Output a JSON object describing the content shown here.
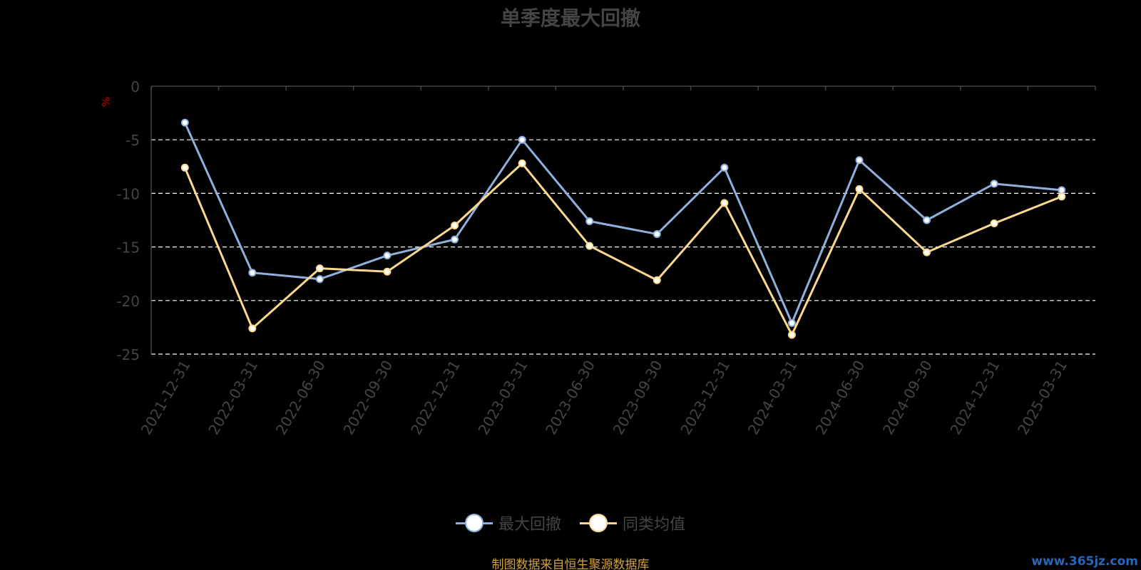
{
  "chart_data": {
    "type": "line",
    "title": "单季度最大回撤",
    "ylabel": "%",
    "xlabel": "",
    "ylim": [
      -25,
      0
    ],
    "yticks": [
      0,
      -5,
      -10,
      -15,
      -20,
      -25
    ],
    "grid": "dashed horizontal",
    "legend_position": "bottom",
    "categories": [
      "2021-12-31",
      "2022-03-31",
      "2022-06-30",
      "2022-09-30",
      "2022-12-31",
      "2023-03-31",
      "2023-06-30",
      "2023-09-30",
      "2023-12-31",
      "2024-03-31",
      "2024-06-30",
      "2024-09-30",
      "2024-12-31",
      "2025-03-31"
    ],
    "series": [
      {
        "name": "最大回撤",
        "color": "#8fb0dd",
        "values": [
          -3.4,
          -17.4,
          -18.0,
          -15.8,
          -14.3,
          -5.0,
          -12.6,
          -13.8,
          -7.6,
          -22.1,
          -6.9,
          -12.5,
          -9.1,
          -9.7
        ]
      },
      {
        "name": "同类均值",
        "color": "#fbd88e",
        "values": [
          -7.6,
          -22.6,
          -17.0,
          -17.3,
          -13.0,
          -7.2,
          -14.9,
          -18.1,
          -10.9,
          -23.2,
          -9.6,
          -15.5,
          -12.8,
          -10.3
        ]
      }
    ]
  },
  "footer": {
    "source": "制图数据来自恒生聚源数据库",
    "watermark": "www.365jz.com"
  }
}
